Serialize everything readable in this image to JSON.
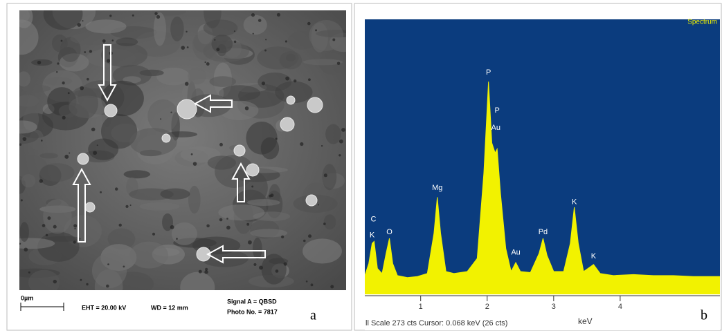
{
  "panel_a": {
    "scale_bar": "0µm",
    "eht": "EHT = 20.00 kV",
    "wd": "WD =  12 mm",
    "signal": "Signal A = QBSD",
    "photo": "Photo No. = 7817",
    "label": "a"
  },
  "chart_data": {
    "type": "area",
    "legend_title": "Spectrum",
    "xlabel": "keV",
    "status": "ll Scale 273 cts  Cursor: 0.068 keV (26 cts)",
    "label": "b",
    "color": "#f2f200",
    "background": "#0b3c7e",
    "x": [
      0.16,
      0.22,
      0.27,
      0.3,
      0.35,
      0.42,
      0.48,
      0.53,
      0.58,
      0.65,
      0.8,
      0.95,
      1.1,
      1.2,
      1.25,
      1.3,
      1.38,
      1.5,
      1.7,
      1.85,
      1.95,
      2.02,
      2.07,
      2.12,
      2.15,
      2.2,
      2.28,
      2.36,
      2.43,
      2.5,
      2.65,
      2.78,
      2.84,
      2.9,
      3.0,
      3.15,
      3.25,
      3.31,
      3.37,
      3.45,
      3.6,
      3.7,
      3.9,
      4.2,
      4.5,
      4.8,
      5.1,
      5.5
    ],
    "values": [
      18,
      30,
      50,
      52,
      25,
      20,
      40,
      55,
      30,
      18,
      16,
      17,
      20,
      60,
      96,
      60,
      22,
      20,
      22,
      35,
      120,
      211,
      150,
      140,
      144,
      100,
      45,
      22,
      31,
      22,
      21,
      40,
      55,
      38,
      22,
      22,
      50,
      86,
      50,
      22,
      29,
      20,
      18,
      19,
      18,
      18,
      17,
      17
    ],
    "xlim": [
      0.16,
      5.5
    ],
    "ylim": [
      0,
      273
    ],
    "xticks": [
      1,
      2,
      3,
      4
    ],
    "annotations": [
      {
        "text": "C",
        "x": 0.29,
        "y": 74
      },
      {
        "text": "K",
        "x": 0.27,
        "y": 58
      },
      {
        "text": "O",
        "x": 0.53,
        "y": 61
      },
      {
        "text": "Mg",
        "x": 1.25,
        "y": 105
      },
      {
        "text": "P",
        "x": 2.02,
        "y": 220
      },
      {
        "text": "P",
        "x": 2.15,
        "y": 182
      },
      {
        "text": "Au",
        "x": 2.13,
        "y": 165
      },
      {
        "text": "Au",
        "x": 2.43,
        "y": 41
      },
      {
        "text": "Pd",
        "x": 2.84,
        "y": 61
      },
      {
        "text": "K",
        "x": 3.31,
        "y": 91
      },
      {
        "text": "K",
        "x": 3.6,
        "y": 37
      }
    ]
  }
}
